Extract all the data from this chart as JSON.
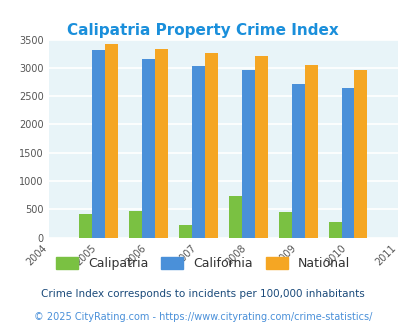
{
  "title": "Calipatria Property Crime Index",
  "years": [
    2004,
    2005,
    2006,
    2007,
    2008,
    2009,
    2010,
    2011
  ],
  "data_years": [
    2005,
    2006,
    2007,
    2008,
    2009,
    2010
  ],
  "calipatria": [
    420,
    475,
    220,
    730,
    460,
    270
  ],
  "california": [
    3320,
    3150,
    3040,
    2960,
    2720,
    2640
  ],
  "national": [
    3420,
    3340,
    3260,
    3210,
    3050,
    2960
  ],
  "bar_colors": {
    "calipatria": "#7ac142",
    "california": "#4a90d9",
    "national": "#f5a623"
  },
  "ylim": [
    0,
    3500
  ],
  "yticks": [
    0,
    500,
    1000,
    1500,
    2000,
    2500,
    3000,
    3500
  ],
  "bg_color": "#e8f4f8",
  "grid_color": "#ffffff",
  "title_color": "#1a8fdb",
  "legend_labels": [
    "Calipatria",
    "California",
    "National"
  ],
  "legend_text_color": "#333333",
  "footnote1": "Crime Index corresponds to incidents per 100,000 inhabitants",
  "footnote2": "© 2025 CityRating.com - https://www.cityrating.com/crime-statistics/",
  "footnote_color1": "#1a4a7a",
  "footnote_color2": "#4a90d9"
}
